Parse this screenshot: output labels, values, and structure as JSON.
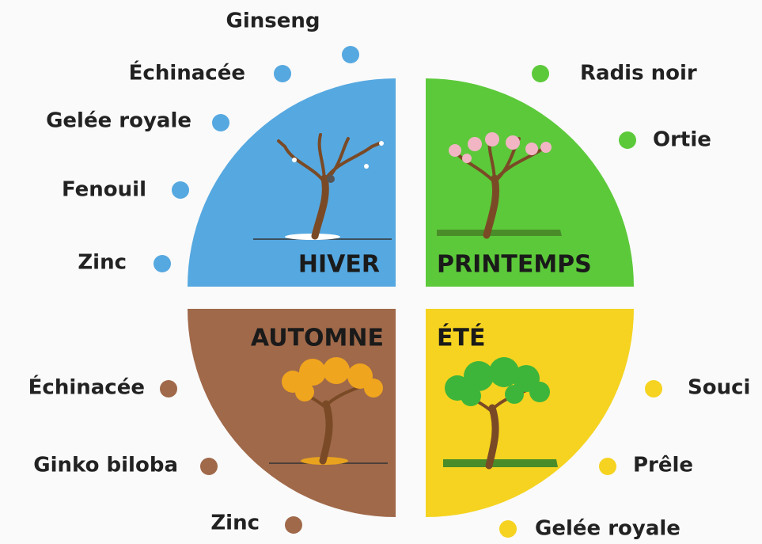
{
  "seasons": [
    {
      "title": "HIVER",
      "items": [
        "Ginseng",
        "Échinacée",
        "Gelée royale",
        "Fenouil",
        "Zinc"
      ]
    },
    {
      "title": "PRINTEMPS",
      "items": [
        "Radis noir",
        "Ortie"
      ]
    },
    {
      "title": "AUTOMNE",
      "items": [
        "Échinacée",
        "Ginko biloba",
        "Zinc"
      ]
    },
    {
      "title": "ÉTÉ",
      "items": [
        "Souci",
        "Prêle",
        "Gelée royale"
      ]
    }
  ]
}
